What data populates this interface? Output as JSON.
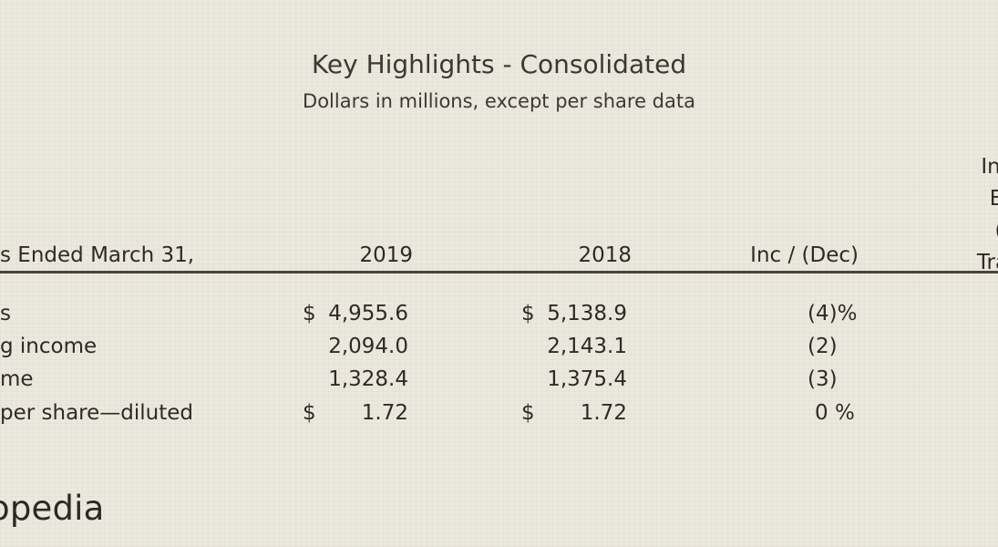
{
  "title": "Key Highlights - Consolidated",
  "subtitle": "Dollars in millions, except per share data",
  "table": {
    "header": {
      "label": "s Ended March 31,",
      "col1": "2019",
      "col2": "2018",
      "col3": "Inc / (Dec)"
    },
    "rows": [
      {
        "label": "s",
        "dollar1": "$",
        "col1": "4,955.6",
        "dollar2": "$",
        "col2": "5,138.9",
        "change": "(4)%"
      },
      {
        "label": "g income",
        "dollar1": "",
        "col1": "2,094.0",
        "dollar2": "",
        "col2": "2,143.1",
        "change": "(2)"
      },
      {
        "label": "me",
        "dollar1": "",
        "col1": "1,328.4",
        "dollar2": "",
        "col2": "1,375.4",
        "change": "(3)"
      },
      {
        "label": " per share—diluted",
        "dollar1": "$",
        "col1": "1.72",
        "dollar2": "$",
        "col2": "1.72",
        "change": "0 %"
      }
    ]
  },
  "side_header": {
    "line1": "In",
    "line2": "E",
    "line3": "(",
    "line4": "Tra"
  },
  "logo_text": "opedia"
}
